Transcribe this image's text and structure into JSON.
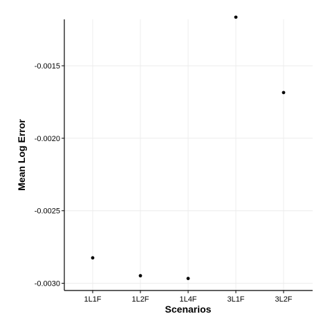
{
  "chart_data": {
    "type": "scatter",
    "title": "",
    "xlabel": "Scenarios",
    "ylabel": "Mean Log Error",
    "categories": [
      "1L1F",
      "1L2F",
      "1L4F",
      "3L1F",
      "3L2F"
    ],
    "values": [
      -0.002825,
      -0.002948,
      -0.002967,
      -0.001165,
      -0.001685
    ],
    "ylim": [
      -0.00305,
      -0.00118
    ],
    "yticks": [
      -0.0015,
      -0.002,
      -0.0025,
      -0.003
    ],
    "ytick_labels": [
      "-0.0015",
      "-0.0020",
      "-0.0025",
      "-0.0030"
    ],
    "grid": true,
    "point_color": "#000000"
  }
}
